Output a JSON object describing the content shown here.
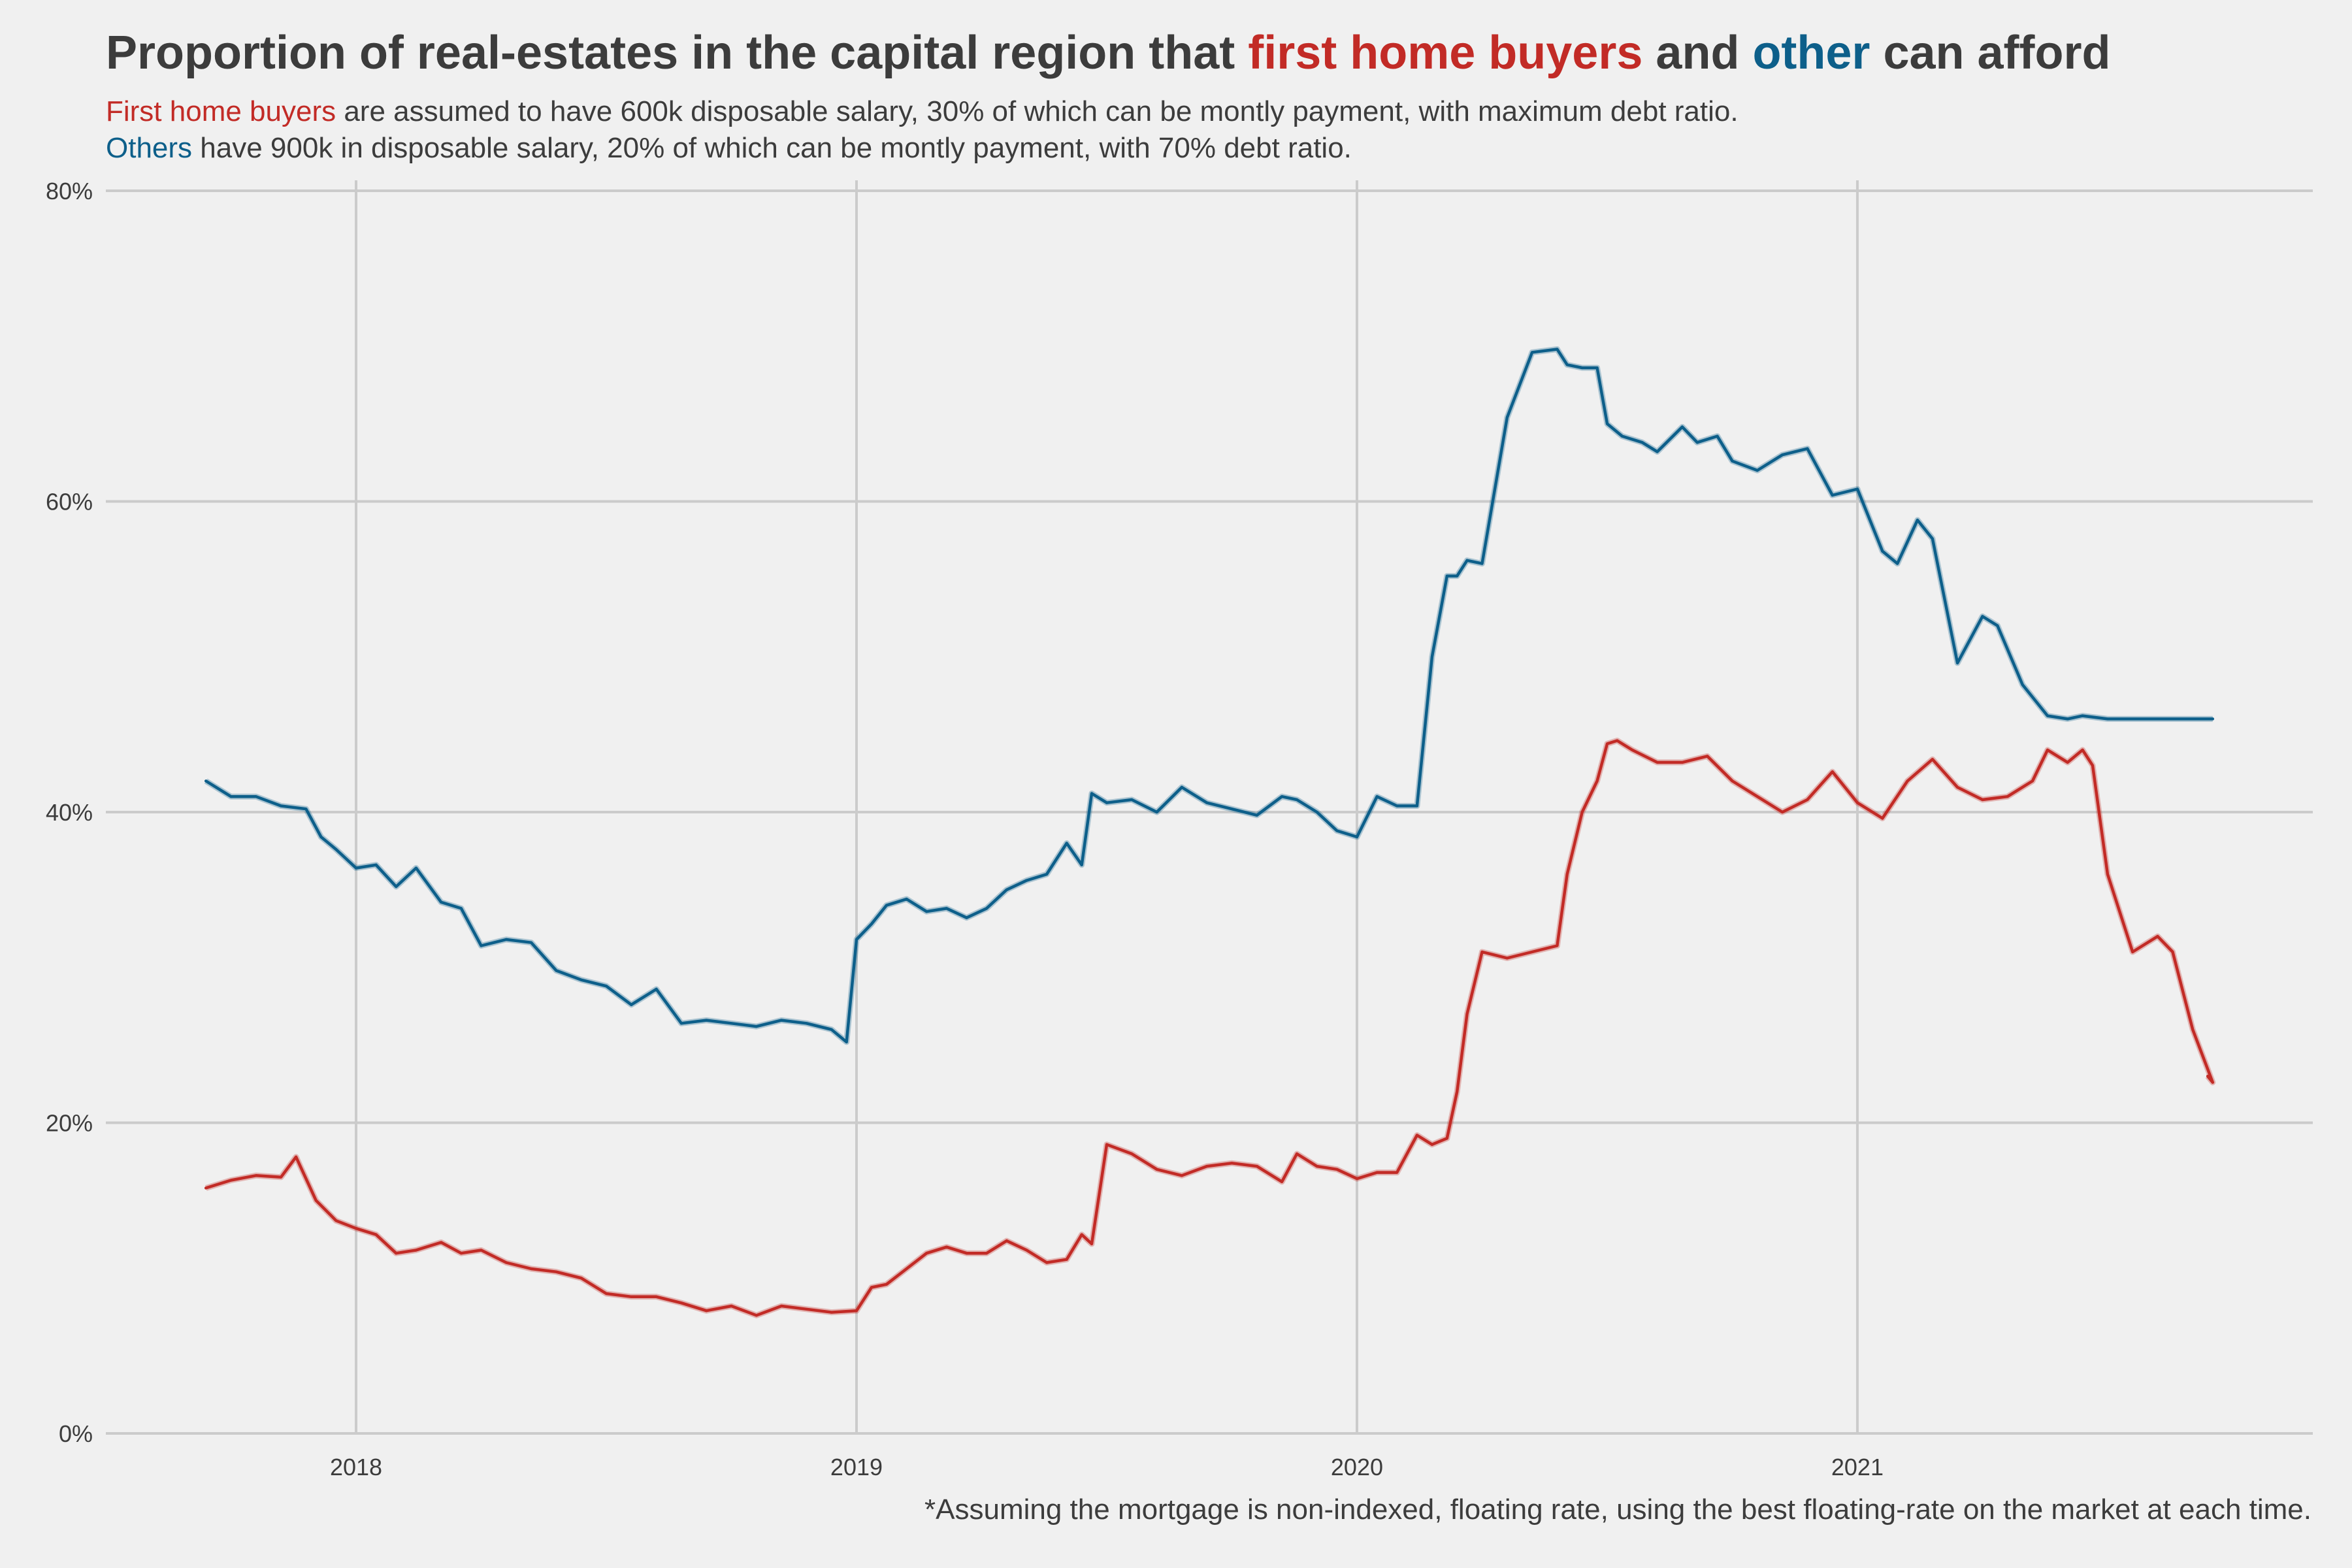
{
  "title": {
    "part1": "Proportion of real-estates in the capital region that ",
    "hl1": "first home buyers",
    "part2": " and ",
    "hl2": "other",
    "part3": " can afford"
  },
  "subtitle1": {
    "hl": "First home buyers",
    "rest": " are assumed to have 600k disposable salary, 30% of which can be montly payment, with maximum debt ratio."
  },
  "subtitle2": {
    "hl": "Others",
    "rest": " have 900k in disposable salary, 20% of which can be montly payment, with 70% debt ratio."
  },
  "footnote": "*Assuming the mortgage is non-indexed, floating rate, using the best floating-rate on the market at each time.",
  "colors": {
    "first_home_buyers": "#c22b26",
    "others": "#0d5f8a",
    "grid": "#cbcbcb",
    "background": "#f0f0f0"
  },
  "chart_data": {
    "type": "line",
    "title": "Proportion of real-estates in the capital region that first home buyers and other can afford",
    "y_ticks": [
      "0%",
      "20%",
      "40%",
      "60%",
      "80%"
    ],
    "y_tick_values": [
      0,
      20,
      40,
      60,
      80
    ],
    "x_ticks": [
      "2018",
      "2019",
      "2020",
      "2021"
    ],
    "x_tick_values": [
      2018,
      2019,
      2020,
      2021
    ],
    "xlim": [
      2017.5,
      2021.91
    ],
    "ylim": [
      0,
      80
    ],
    "grid": true,
    "series": [
      {
        "name": "first home buyers",
        "x": [
          2017.7,
          2017.75,
          2017.8,
          2017.85,
          2017.88,
          2017.92,
          2017.96,
          2018.0,
          2018.04,
          2018.08,
          2018.12,
          2018.17,
          2018.21,
          2018.25,
          2018.3,
          2018.35,
          2018.4,
          2018.45,
          2018.5,
          2018.55,
          2018.6,
          2018.65,
          2018.7,
          2018.75,
          2018.8,
          2018.85,
          2018.9,
          2018.95,
          2019.0,
          2019.03,
          2019.06,
          2019.1,
          2019.14,
          2019.18,
          2019.22,
          2019.26,
          2019.3,
          2019.34,
          2019.38,
          2019.42,
          2019.45,
          2019.47,
          2019.5,
          2019.55,
          2019.6,
          2019.65,
          2019.7,
          2019.75,
          2019.8,
          2019.85,
          2019.88,
          2019.92,
          2019.96,
          2020.0,
          2020.04,
          2020.08,
          2020.12,
          2020.15,
          2020.18,
          2020.2,
          2020.22,
          2020.25,
          2020.3,
          2020.35,
          2020.4,
          2020.42,
          2020.45,
          2020.48,
          2020.5,
          2020.52,
          2020.55,
          2020.6,
          2020.65,
          2020.7,
          2020.75,
          2020.8,
          2020.85,
          2020.9,
          2020.95,
          2021.0,
          2021.05,
          2021.1,
          2021.15,
          2021.2,
          2021.25,
          2021.3,
          2021.35,
          2021.38,
          2021.42,
          2021.45,
          2021.47,
          2021.5,
          2021.55,
          2021.6,
          2021.63,
          2021.67,
          2021.71,
          2021.7
        ],
        "values": [
          15.8,
          16.3,
          16.6,
          16.5,
          17.8,
          15.0,
          13.7,
          13.2,
          12.8,
          11.6,
          11.8,
          12.3,
          11.6,
          11.8,
          11.0,
          10.6,
          10.4,
          10.0,
          9.0,
          8.8,
          8.8,
          8.4,
          7.9,
          8.2,
          7.6,
          8.2,
          8.0,
          7.8,
          7.9,
          9.4,
          9.6,
          10.6,
          11.6,
          12.0,
          11.6,
          11.6,
          12.4,
          11.8,
          11.0,
          11.2,
          12.8,
          12.2,
          18.6,
          18.0,
          17.0,
          16.6,
          17.2,
          17.4,
          17.2,
          16.2,
          18.0,
          17.2,
          17.0,
          16.4,
          16.8,
          16.8,
          19.2,
          18.6,
          19.0,
          22.0,
          27.0,
          31.0,
          30.6,
          31.0,
          31.4,
          36.0,
          40.0,
          42.0,
          44.4,
          44.6,
          44.0,
          43.2,
          43.2,
          43.6,
          42.0,
          41.0,
          40.0,
          40.8,
          42.6,
          40.6,
          39.6,
          42.0,
          43.4,
          41.6,
          40.8,
          41.0,
          42.0,
          44.0,
          43.2,
          44.0,
          43.0,
          36.0,
          31.0,
          32.0,
          31.0,
          26.0,
          22.6,
          23.0
        ]
      },
      {
        "name": "other",
        "x": [
          2017.7,
          2017.75,
          2017.8,
          2017.85,
          2017.9,
          2017.93,
          2017.96,
          2018.0,
          2018.04,
          2018.08,
          2018.12,
          2018.17,
          2018.21,
          2018.25,
          2018.3,
          2018.35,
          2018.4,
          2018.45,
          2018.5,
          2018.55,
          2018.6,
          2018.65,
          2018.7,
          2018.75,
          2018.8,
          2018.85,
          2018.9,
          2018.95,
          2018.98,
          2019.0,
          2019.03,
          2019.06,
          2019.1,
          2019.14,
          2019.18,
          2019.22,
          2019.26,
          2019.3,
          2019.34,
          2019.38,
          2019.42,
          2019.45,
          2019.47,
          2019.5,
          2019.55,
          2019.6,
          2019.65,
          2019.7,
          2019.75,
          2019.8,
          2019.85,
          2019.88,
          2019.92,
          2019.96,
          2020.0,
          2020.04,
          2020.08,
          2020.12,
          2020.15,
          2020.18,
          2020.2,
          2020.22,
          2020.25,
          2020.3,
          2020.35,
          2020.4,
          2020.42,
          2020.45,
          2020.48,
          2020.5,
          2020.53,
          2020.57,
          2020.6,
          2020.65,
          2020.68,
          2020.72,
          2020.75,
          2020.8,
          2020.85,
          2020.9,
          2020.95,
          2021.0,
          2021.05,
          2021.08,
          2021.12,
          2021.15,
          2021.2,
          2021.25,
          2021.28,
          2021.33,
          2021.38,
          2021.42,
          2021.45,
          2021.5,
          2021.55,
          2021.6,
          2021.64,
          2021.67,
          2021.71
        ],
        "values": [
          42.0,
          41.0,
          41.0,
          40.4,
          40.2,
          38.4,
          37.6,
          36.4,
          36.6,
          35.2,
          36.4,
          34.2,
          33.8,
          31.4,
          31.8,
          31.6,
          29.8,
          29.2,
          28.8,
          27.6,
          28.6,
          26.4,
          26.6,
          26.4,
          26.2,
          26.6,
          26.4,
          26.0,
          25.2,
          31.8,
          32.8,
          34.0,
          34.4,
          33.6,
          33.8,
          33.2,
          33.8,
          35.0,
          35.6,
          36.0,
          38.0,
          36.6,
          41.2,
          40.6,
          40.8,
          40.0,
          41.6,
          40.6,
          40.2,
          39.8,
          41.0,
          40.8,
          40.0,
          38.8,
          38.4,
          41.0,
          40.4,
          40.4,
          50.0,
          55.2,
          55.2,
          56.2,
          56.0,
          65.4,
          69.6,
          69.8,
          68.8,
          68.6,
          68.6,
          65.0,
          64.2,
          63.8,
          63.2,
          64.8,
          63.8,
          64.2,
          62.6,
          62.0,
          63.0,
          63.4,
          60.4,
          60.8,
          56.8,
          56.0,
          58.8,
          57.6,
          49.6,
          52.6,
          52.0,
          48.2,
          46.2,
          46.0,
          46.2,
          46.0,
          46.0,
          46.0,
          46.0,
          46.0,
          46.0
        ]
      }
    ]
  }
}
